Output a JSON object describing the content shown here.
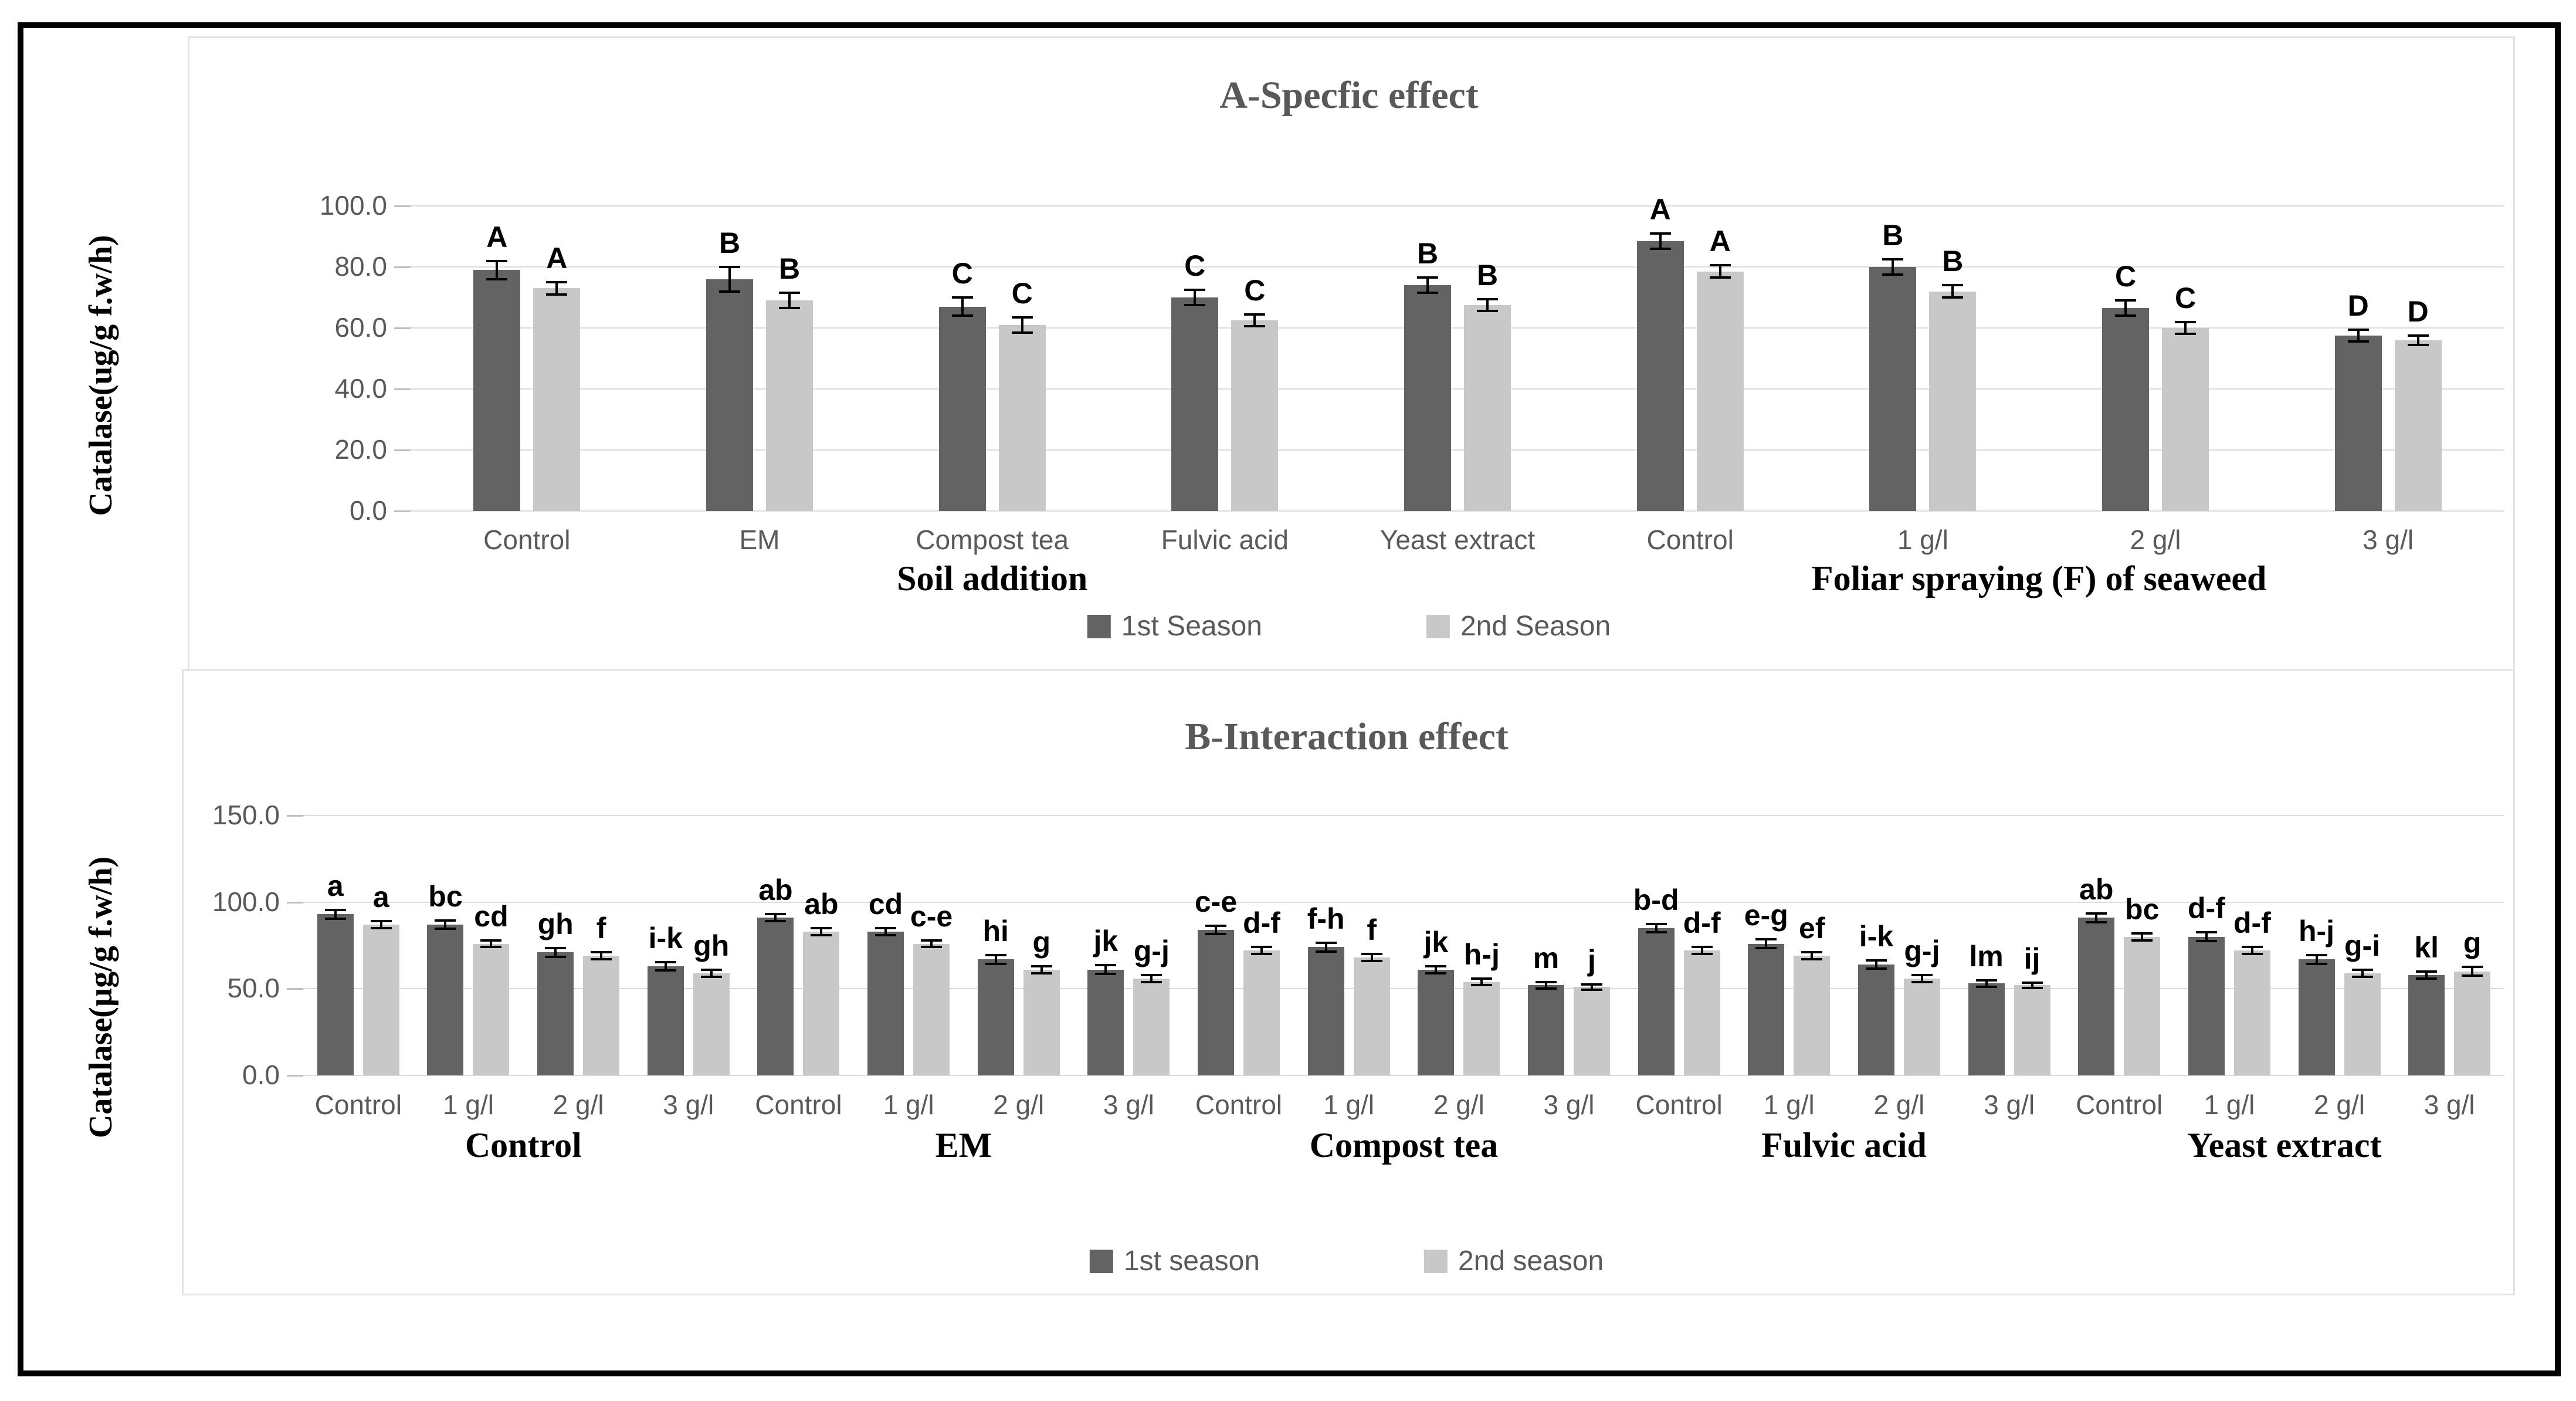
{
  "chart_data": [
    {
      "type": "bar",
      "title": "A-Specfic effect",
      "ylabel": "Catalase(ug/g f.w/h)",
      "ylim": [
        0,
        100
      ],
      "ytick_step": 20,
      "ytick_labels": [
        "0.0",
        "20.0",
        "40.0",
        "60.0",
        "80.0",
        "100.0"
      ],
      "grid": true,
      "legend_position": "bottom",
      "legend": [
        "1st Season",
        "2nd Season"
      ],
      "colors": [
        "#636363",
        "#c8c8c8"
      ],
      "categories": [
        "Control",
        "EM",
        "Compost tea",
        "Fulvic acid",
        "Yeast extract",
        "Control",
        "1 g/l",
        "2 g/l",
        "3 g/l"
      ],
      "groups": [
        {
          "label": "Soil addition",
          "span": 5
        },
        {
          "label": "Foliar spraying (F) of seaweed",
          "span": 4
        }
      ],
      "series": [
        {
          "name": "1st Season",
          "values": [
            79,
            76,
            67,
            70,
            74,
            88.5,
            80,
            66.5,
            57.5
          ],
          "errors": [
            3,
            4,
            3,
            2.5,
            2.5,
            2.5,
            2.5,
            2.5,
            2
          ],
          "letters": [
            "A",
            "B",
            "C",
            "C",
            "B",
            "A",
            "B",
            "C",
            "D"
          ]
        },
        {
          "name": "2nd Season",
          "values": [
            73,
            69,
            61,
            62.5,
            67.5,
            78.5,
            72,
            60,
            56
          ],
          "errors": [
            2,
            2.5,
            2.5,
            2,
            2,
            2,
            2,
            2,
            1.5
          ],
          "letters": [
            "A",
            "B",
            "C",
            "C",
            "B",
            "A",
            "B",
            "C",
            "D"
          ]
        }
      ]
    },
    {
      "type": "bar",
      "title": "B-Interaction effect",
      "ylabel": "Catalase(µg/g f.w/h)",
      "ylim": [
        0,
        150
      ],
      "ytick_step": 50,
      "ytick_labels": [
        "0.0",
        "50.0",
        "100.0",
        "150.0"
      ],
      "grid": true,
      "legend_position": "bottom",
      "legend": [
        "1st season",
        "2nd season"
      ],
      "colors": [
        "#636363",
        "#c8c8c8"
      ],
      "categories": [
        "Control",
        "1 g/l",
        "2 g/l",
        "3 g/l",
        "Control",
        "1 g/l",
        "2 g/l",
        "3 g/l",
        "Control",
        "1 g/l",
        "2 g/l",
        "3 g/l",
        "Control",
        "1 g/l",
        "2 g/l",
        "3 g/l",
        "Control",
        "1 g/l",
        "2 g/l",
        "3 g/l"
      ],
      "groups": [
        {
          "label": "Control",
          "span": 4
        },
        {
          "label": "EM",
          "span": 4
        },
        {
          "label": "Compost tea",
          "span": 4
        },
        {
          "label": "Fulvic acid",
          "span": 4
        },
        {
          "label": "Yeast extract",
          "span": 4
        }
      ],
      "series": [
        {
          "name": "1st season",
          "values": [
            93,
            87,
            71,
            63,
            91,
            83,
            67,
            61,
            84,
            74,
            61,
            52,
            85,
            76,
            64,
            53,
            91,
            80,
            67,
            58
          ],
          "errors": [
            2.5,
            2.5,
            2.5,
            2.5,
            2,
            2,
            2.5,
            2.5,
            2.5,
            2.5,
            2,
            2,
            2.5,
            2.5,
            2.5,
            2,
            2.5,
            2.5,
            2.5,
            2
          ],
          "letters": [
            "a",
            "bc",
            "gh",
            "i-k",
            "ab",
            "cd",
            "hi",
            "jk",
            "c-e",
            "f-h",
            "jk",
            "m",
            "b-d",
            "e-g",
            "i-k",
            "lm",
            "ab",
            "d-f",
            "h-j",
            "kl"
          ]
        },
        {
          "name": "2nd season",
          "values": [
            87,
            76,
            69,
            59,
            83,
            76,
            61,
            56,
            72,
            68,
            54,
            51,
            72,
            69,
            56,
            52,
            80,
            72,
            59,
            60
          ],
          "errors": [
            2,
            2,
            2,
            2,
            2,
            2,
            2,
            2,
            2,
            2,
            2,
            1.5,
            2,
            2,
            2,
            1.5,
            2,
            2,
            2,
            2.5
          ],
          "letters": [
            "a",
            "cd",
            "f",
            "gh",
            "ab",
            "c-e",
            "g",
            "g-j",
            "d-f",
            "f",
            "h-j",
            "j",
            "d-f",
            "ef",
            "g-j",
            "ij",
            "bc",
            "d-f",
            "g-i",
            "g"
          ]
        }
      ]
    }
  ],
  "ui_colors": {
    "grid": "#dcdcdc",
    "tick_text": "#595959",
    "title_text": "#595959",
    "letter_text": "#000000",
    "border": "#000000",
    "panel_border": "#e2e2e2"
  }
}
